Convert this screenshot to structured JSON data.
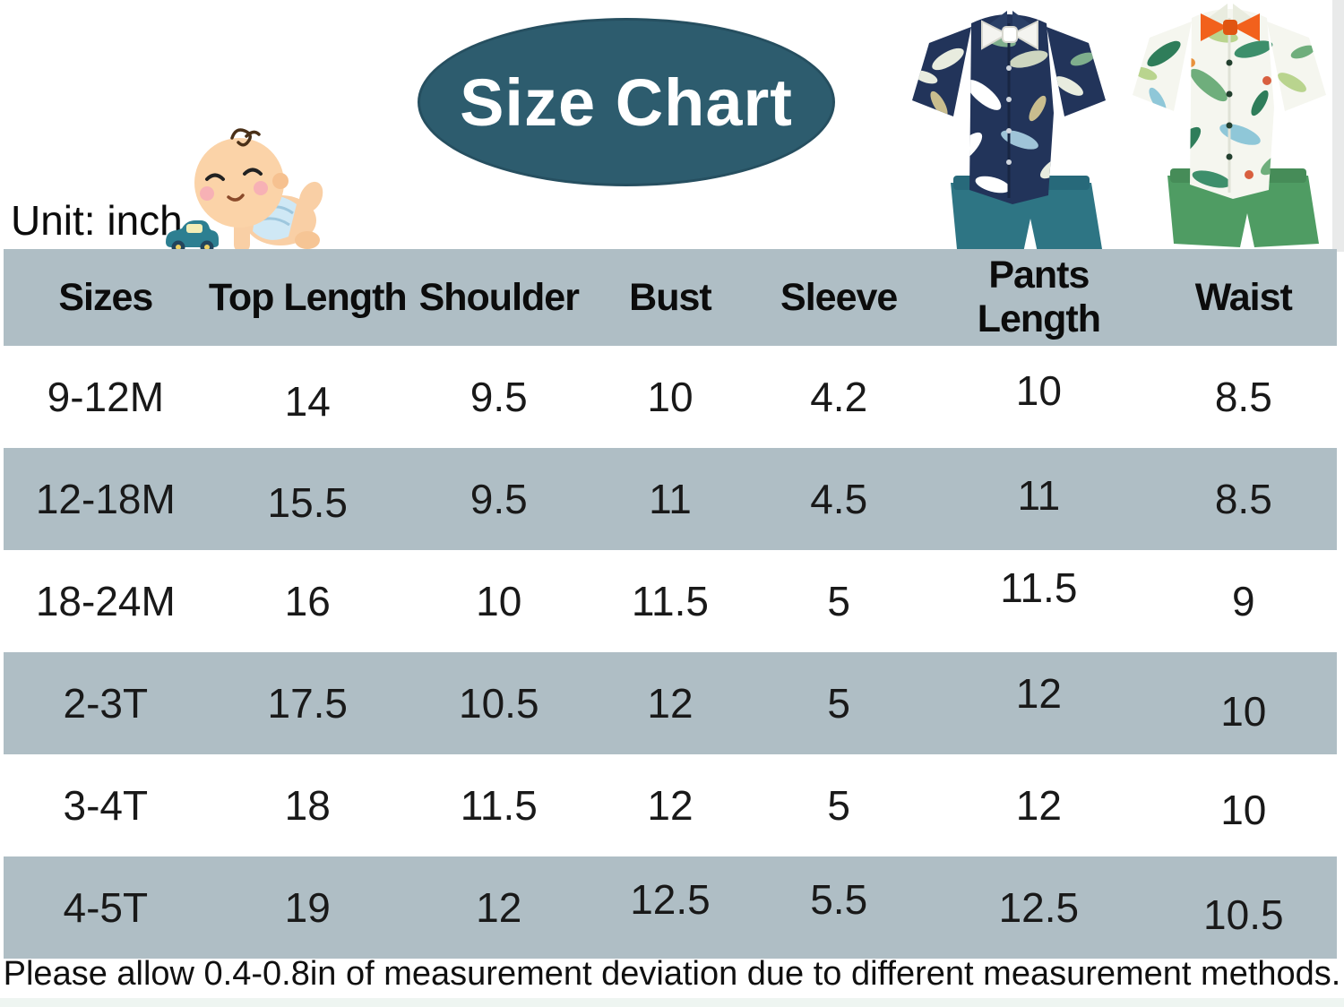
{
  "header": {
    "badge_label": "Size Chart",
    "unit_label": "Unit: inch"
  },
  "footer": {
    "note": "Please allow 0.4-0.8in of measurement deviation due to different measurement methods."
  },
  "colors": {
    "badge_fill": "#2d5c6e",
    "badge_text": "#ffffff",
    "band_gray": "#afbec5",
    "row_white": "#ffffff",
    "text_black": "#151515",
    "navy_shirt": "#22345a",
    "teal_shorts": "#2e7584",
    "green_shorts": "#4f9c63",
    "orange_bowtie": "#f2611c",
    "white_bowtie": "#f4f4f0"
  },
  "icons": {
    "baby": "crawling-baby-icon",
    "toy_car": "toy-car-icon",
    "outfit_left": "navy-tropical-shirt-outfit-icon",
    "outfit_right": "white-tropical-shirt-outfit-icon"
  },
  "chart_data": {
    "type": "table",
    "title": "Size Chart",
    "unit": "inch",
    "columns": [
      "Sizes",
      "Top Length",
      "Shoulder",
      "Bust",
      "Sleeve",
      "Pants Length",
      "Waist"
    ],
    "rows": [
      [
        "9-12M",
        "14",
        "9.5",
        "10",
        "4.2",
        "10",
        "8.5"
      ],
      [
        "12-18M",
        "15.5",
        "9.5",
        "11",
        "4.5",
        "11",
        "8.5"
      ],
      [
        "18-24M",
        "16",
        "10",
        "11.5",
        "5",
        "11.5",
        "9"
      ],
      [
        "2-3T",
        "17.5",
        "10.5",
        "12",
        "5",
        "12",
        "10"
      ],
      [
        "3-4T",
        "18",
        "11.5",
        "12",
        "5",
        "12",
        "10"
      ],
      [
        "4-5T",
        "19",
        "12",
        "12.5",
        "5.5",
        "12.5",
        "10.5"
      ]
    ]
  }
}
